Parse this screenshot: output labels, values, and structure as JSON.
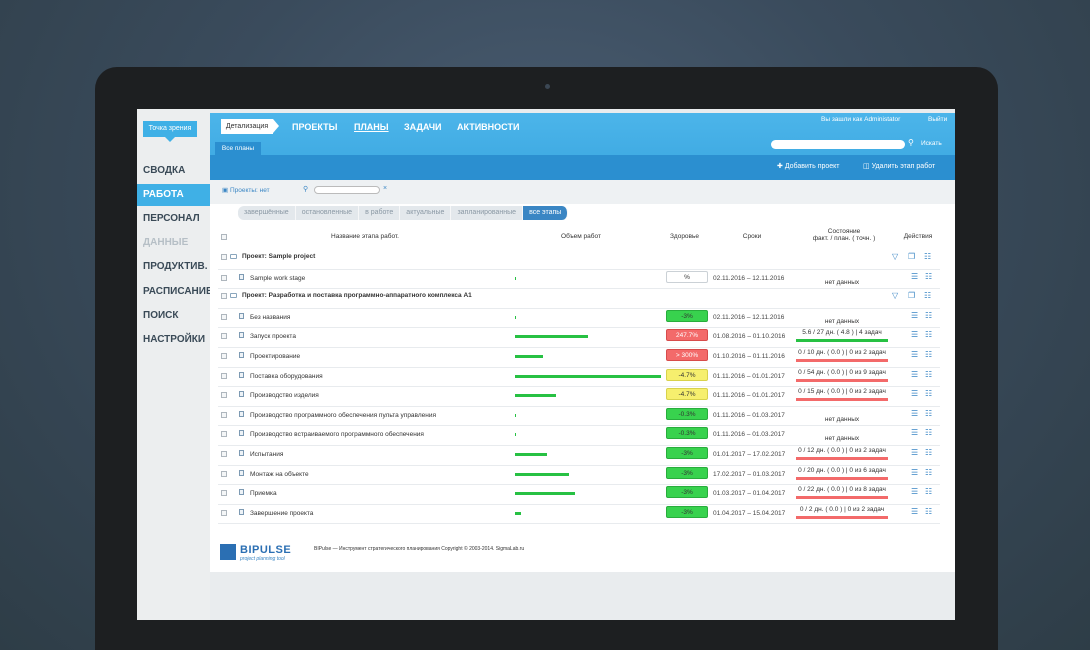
{
  "sidebar": {
    "viewpoint": "Точка зрения",
    "items": [
      {
        "label": "СВОДКА",
        "state": "normal"
      },
      {
        "label": "РАБОТА",
        "state": "active"
      },
      {
        "label": "ПЕРСОНАЛ",
        "state": "normal"
      },
      {
        "label": "ДАННЫЕ",
        "state": "disabled"
      },
      {
        "label": "ПРОДУКТИВ.",
        "state": "normal"
      },
      {
        "label": "РАСПИСАНИЕ",
        "state": "normal"
      },
      {
        "label": "ПОИСК",
        "state": "normal"
      },
      {
        "label": "НАСТРОЙКИ",
        "state": "normal"
      }
    ]
  },
  "header": {
    "detail": "Детализация",
    "links": [
      "ПРОЕКТЫ",
      "ПЛАНЫ",
      "ЗАДАЧИ",
      "АКТИВНОСТИ"
    ],
    "user": "Вы зашли как  Administator",
    "logout": "Выйти",
    "search_label": "Искать",
    "tab": "Все планы",
    "add_project": "Добавить проект",
    "delete_stage": "Удалить этап работ"
  },
  "toolbar": {
    "projects_label": "Проекты: нет",
    "clear": "×",
    "filters": [
      "завершённые",
      "остановленные",
      "в работе",
      "актуальные",
      "запланированные",
      "все этапы"
    ]
  },
  "table": {
    "col_name": "Название этапа работ.",
    "col_volume": "Объем работ",
    "col_health": "Здоровье",
    "col_dates": "Сроки",
    "col_state_1": "Состояние",
    "col_state_2": "факт. / план. ( точн. )",
    "col_actions": "Действия",
    "groups": [
      {
        "title": "Проект: Sample project",
        "rows": [
          {
            "name": "Sample work stage",
            "volume": 0,
            "health": "%",
            "health_color": "empty",
            "dates": "02.11.2016 – 12.11.2016",
            "state": "нет данных",
            "state_color": ""
          }
        ]
      },
      {
        "title": "Проект: Разработка и поставка программно-аппаратного комплекса А1",
        "rows": [
          {
            "name": "Без названия",
            "volume": 0,
            "health": "-3%",
            "health_color": "green",
            "dates": "02.11.2016 – 12.11.2016",
            "state": "нет данных",
            "state_color": ""
          },
          {
            "name": "Запуск проекта",
            "volume": 0.5,
            "health": "247.7%",
            "health_color": "red",
            "dates": "01.08.2016 – 01.10.2016",
            "state": "5.6 / 27 дн. ( 4.8 ) | 4 задач",
            "state_color": "green"
          },
          {
            "name": "Проектирование",
            "volume": 0.19,
            "health": "> 300%",
            "health_color": "red",
            "dates": "01.10.2016 – 01.11.2016",
            "state": "0 / 10 дн. ( 0.0 ) | 0 из 2 задач",
            "state_color": "red"
          },
          {
            "name": "Поставка оборудования",
            "volume": 1.0,
            "health": "-4.7%",
            "health_color": "yellow",
            "dates": "01.11.2016 – 01.01.2017",
            "state": "0 / 54 дн. ( 0.0 ) | 0 из 9 задач",
            "state_color": "red"
          },
          {
            "name": "Производство изделия",
            "volume": 0.28,
            "health": "-4.7%",
            "health_color": "yellow",
            "dates": "01.11.2016 – 01.01.2017",
            "state": "0 / 15 дн. ( 0.0 ) | 0 из 2 задач",
            "state_color": "red"
          },
          {
            "name": "Производство программного обеспечения пульта управления",
            "volume": 0,
            "health": "-0.3%",
            "health_color": "green",
            "dates": "01.11.2016 – 01.03.2017",
            "state": "нет данных",
            "state_color": ""
          },
          {
            "name": "Производство встраиваемого программного обеспечения",
            "volume": 0,
            "health": "-0.3%",
            "health_color": "green",
            "dates": "01.11.2016 – 01.03.2017",
            "state": "нет данных",
            "state_color": ""
          },
          {
            "name": "Испытания",
            "volume": 0.22,
            "health": "-3%",
            "health_color": "green",
            "dates": "01.01.2017 – 17.02.2017",
            "state": "0 / 12 дн. ( 0.0 ) | 0 из 2 задач",
            "state_color": "red"
          },
          {
            "name": "Монтаж на объекте",
            "volume": 0.37,
            "health": "-3%",
            "health_color": "green",
            "dates": "17.02.2017 – 01.03.2017",
            "state": "0 / 20 дн. ( 0.0 ) | 0 из 6 задач",
            "state_color": "red"
          },
          {
            "name": "Приемка",
            "volume": 0.41,
            "health": "-3%",
            "health_color": "green",
            "dates": "01.03.2017 – 01.04.2017",
            "state": "0 / 22 дн. ( 0.0 ) | 0 из 8 задач",
            "state_color": "red"
          },
          {
            "name": "Завершение проекта",
            "volume": 0.04,
            "health": "-3%",
            "health_color": "green",
            "dates": "01.04.2017 – 15.04.2017",
            "state": "0 / 2 дн. ( 0.0 ) | 0 из 2 задач",
            "state_color": "red"
          }
        ]
      }
    ]
  },
  "footer": {
    "logo": "BIPULSE",
    "logo_sub": "project planning tool",
    "text": "BIPulse — Инструмент стратегического планирования Copyright © 2003-2014. SigmaLab.ru"
  },
  "colors": {
    "accent": "#3fb0e6",
    "green": "#27c143",
    "red": "#f36a6a",
    "yellow": "#f6ef6e"
  }
}
